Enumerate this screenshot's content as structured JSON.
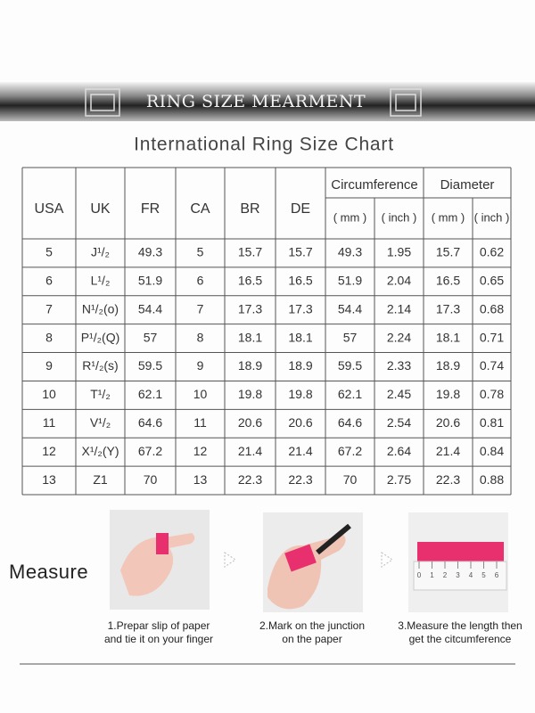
{
  "banner": {
    "title": "RING SIZE MEARMENT"
  },
  "table": {
    "title": "International Ring Size Chart",
    "columns": [
      "USA",
      "UK",
      "FR",
      "CA",
      "BR",
      "DE"
    ],
    "groups": [
      "Circumference",
      "Diameter"
    ],
    "units": [
      "( mm )",
      "( inch )",
      "( mm )",
      "( inch )"
    ],
    "rows": [
      [
        5,
        "J¹/₂",
        49.3,
        5,
        15.7,
        15.7,
        49.3,
        1.95,
        15.7,
        0.62
      ],
      [
        6,
        "L¹/₂",
        51.9,
        6,
        16.5,
        16.5,
        51.9,
        2.04,
        16.5,
        0.65
      ],
      [
        7,
        "N¹/₂(o)",
        54.4,
        7,
        17.3,
        17.3,
        54.4,
        2.14,
        17.3,
        0.68
      ],
      [
        8,
        "P¹/₂(Q)",
        57,
        8,
        18.1,
        18.1,
        57,
        2.24,
        18.1,
        0.71
      ],
      [
        9,
        "R¹/₂(s)",
        59.5,
        9,
        18.9,
        18.9,
        59.5,
        2.33,
        18.9,
        0.74
      ],
      [
        10,
        "T¹/₂",
        62.1,
        10,
        19.8,
        19.8,
        62.1,
        2.45,
        19.8,
        0.78
      ],
      [
        11,
        "V¹/₂",
        64.6,
        11,
        20.6,
        20.6,
        64.6,
        2.54,
        20.6,
        0.81
      ],
      [
        12,
        "X¹/₂(Y)",
        67.2,
        12,
        21.4,
        21.4,
        67.2,
        2.64,
        21.4,
        0.84
      ],
      [
        13,
        "Z1",
        70,
        13,
        22.3,
        22.3,
        70,
        2.75,
        22.3,
        0.88
      ]
    ]
  },
  "measure": {
    "label": "Measure",
    "steps": [
      {
        "caption": [
          "1.Prepar slip of paper",
          "and tie it on your finger"
        ]
      },
      {
        "caption": [
          "2.Mark on the junction",
          "on the paper"
        ]
      },
      {
        "caption": [
          "3.Measure the length then",
          "get the citcumference"
        ]
      }
    ],
    "ruler": [
      0,
      1,
      2,
      3,
      4,
      5,
      6
    ]
  }
}
